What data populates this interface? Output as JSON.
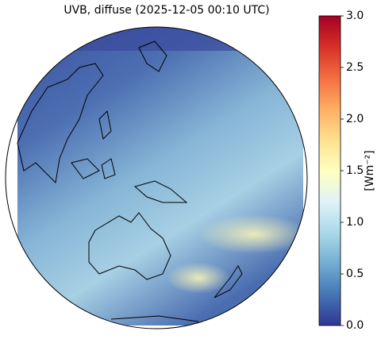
{
  "map": {
    "title": "UVB, diffuse (2025-12-05 00:10 UTC)",
    "colorbar": {
      "label": "[Wm⁻²]",
      "lim": [
        0,
        3
      ],
      "ticks": [
        {
          "value": 0,
          "label": "0.0"
        },
        {
          "value": 0.5,
          "label": "0.5"
        },
        {
          "value": 1,
          "label": "1.0"
        },
        {
          "value": 1.5,
          "label": "1.5"
        },
        {
          "value": 2,
          "label": "2.0"
        },
        {
          "value": 2.5,
          "label": "2.5"
        },
        {
          "value": 3,
          "label": "3.0"
        }
      ]
    }
  }
}
